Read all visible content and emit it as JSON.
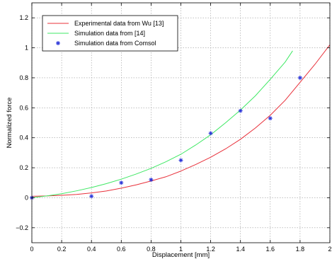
{
  "chart_data": {
    "type": "line",
    "title": "",
    "xlabel": "Displacement [mm]",
    "ylabel": "Normalized force",
    "xlim": [
      0,
      2
    ],
    "ylim": [
      -0.3,
      1.3
    ],
    "grid": true,
    "legend_position": "top-left",
    "xticks": [
      "0",
      "0.2",
      "0.4",
      "0.6",
      "0.8",
      "1",
      "1.2",
      "1.4",
      "1.6",
      "1.8",
      "2"
    ],
    "yticks": [
      "−0.2",
      "0",
      "0.2",
      "0.4",
      "0.6",
      "0.8",
      "1",
      "1.2"
    ],
    "series": [
      {
        "name": "Experimental data from Wu [13]",
        "style": "line",
        "color": "#e8303a",
        "x": [
          0,
          0.1,
          0.2,
          0.3,
          0.4,
          0.5,
          0.6,
          0.7,
          0.8,
          0.9,
          1.0,
          1.1,
          1.2,
          1.3,
          1.4,
          1.5,
          1.6,
          1.7,
          1.8,
          1.9,
          2.0
        ],
        "y": [
          0.01,
          0.012,
          0.016,
          0.022,
          0.032,
          0.045,
          0.064,
          0.086,
          0.112,
          0.14,
          0.178,
          0.222,
          0.27,
          0.326,
          0.39,
          0.465,
          0.55,
          0.65,
          0.77,
          0.89,
          1.02
        ]
      },
      {
        "name": "Simulation data from [14]",
        "style": "line",
        "color": "#3fe864",
        "x": [
          0,
          0.1,
          0.2,
          0.3,
          0.4,
          0.5,
          0.6,
          0.7,
          0.8,
          0.9,
          1.0,
          1.1,
          1.2,
          1.3,
          1.4,
          1.5,
          1.6,
          1.7,
          1.75
        ],
        "y": [
          0.0,
          0.012,
          0.027,
          0.046,
          0.068,
          0.094,
          0.124,
          0.158,
          0.196,
          0.24,
          0.29,
          0.352,
          0.42,
          0.5,
          0.585,
          0.68,
          0.79,
          0.905,
          0.98
        ]
      },
      {
        "name": "Simulation data from Comsol",
        "style": "marker",
        "marker": "*",
        "color": "#2a34d8",
        "x": [
          0,
          0.4,
          0.6,
          0.8,
          1.0,
          1.2,
          1.4,
          1.6,
          1.8
        ],
        "y": [
          0.0,
          0.01,
          0.1,
          0.12,
          0.25,
          0.43,
          0.58,
          0.53,
          0.8
        ]
      }
    ]
  }
}
